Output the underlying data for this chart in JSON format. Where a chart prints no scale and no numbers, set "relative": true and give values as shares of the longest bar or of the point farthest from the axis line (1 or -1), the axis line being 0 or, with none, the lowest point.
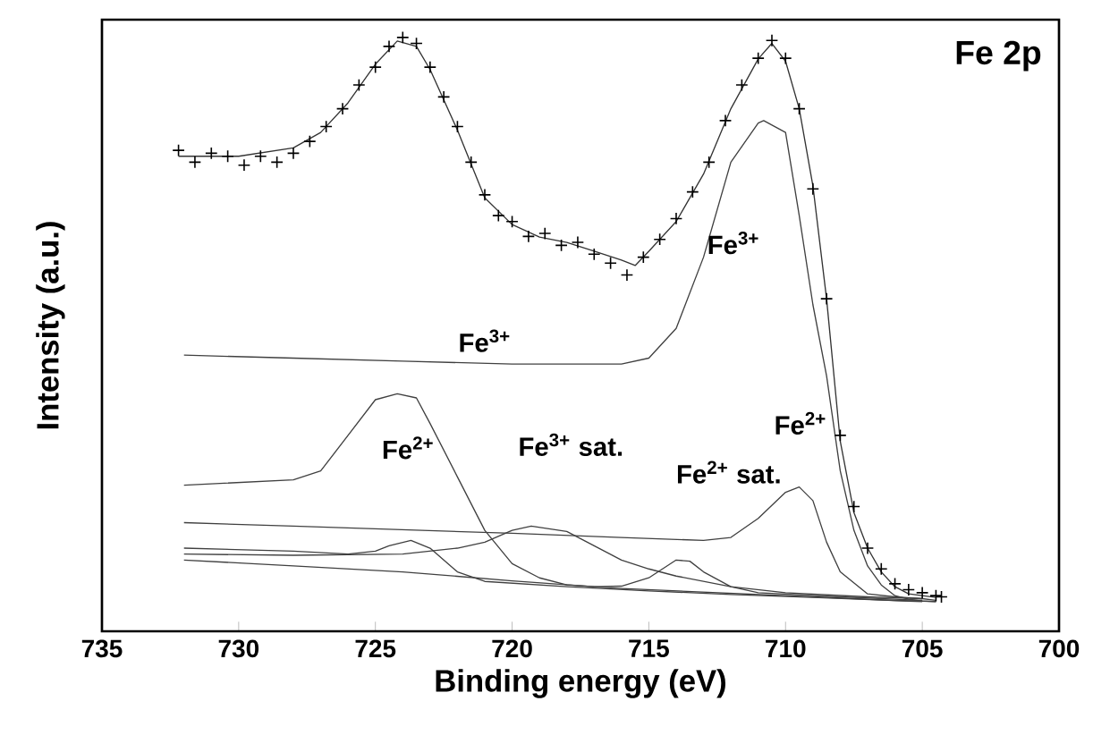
{
  "chart_data": {
    "type": "line",
    "xlabel": "Binding energy (eV)",
    "ylabel": "Intensity (a.u.)",
    "relative": true,
    "xlim": [
      735,
      700
    ],
    "xticks": [
      735,
      730,
      725,
      720,
      715,
      710,
      705,
      700
    ],
    "grid": false,
    "series": [
      {
        "color": "#333333",
        "x": [
          732.2,
          730,
          728,
          727,
          726,
          725,
          724.2,
          723.5,
          723,
          722,
          721,
          720,
          719,
          718,
          717,
          716,
          715.5,
          715,
          714,
          713,
          712,
          711,
          710.5,
          710,
          709.5,
          709,
          708.5,
          708,
          707.5,
          707,
          706.5,
          706,
          705.5,
          705,
          704.5
        ],
        "values": [
          0.8,
          0.8,
          0.814,
          0.84,
          0.89,
          0.955,
          0.994,
          0.985,
          0.946,
          0.844,
          0.73,
          0.685,
          0.664,
          0.655,
          0.64,
          0.625,
          0.616,
          0.64,
          0.69,
          0.77,
          0.88,
          0.964,
          0.99,
          0.96,
          0.88,
          0.75,
          0.56,
          0.32,
          0.2,
          0.14,
          0.1,
          0.075,
          0.063,
          0.06,
          0.057
        ]
      },
      {
        "color": "#404040",
        "x": [
          732,
          728,
          724,
          720,
          716,
          715,
          714,
          713,
          712,
          711,
          710.8,
          710,
          709.5,
          709,
          708.5,
          708,
          707.5,
          707,
          706.5,
          706,
          705.5,
          705,
          704.5
        ],
        "values": [
          0.465,
          0.46,
          0.455,
          0.45,
          0.45,
          0.46,
          0.51,
          0.63,
          0.79,
          0.856,
          0.86,
          0.84,
          0.7,
          0.55,
          0.43,
          0.27,
          0.17,
          0.11,
          0.078,
          0.06,
          0.054,
          0.051,
          0.05
        ]
      },
      {
        "color": "#404040",
        "x": [
          732,
          728,
          727,
          726,
          725,
          724.2,
          723.5,
          723,
          722,
          721,
          720,
          719,
          718,
          716,
          714,
          712,
          710,
          708,
          706,
          704.5
        ],
        "values": [
          0.246,
          0.255,
          0.27,
          0.33,
          0.39,
          0.4,
          0.393,
          0.35,
          0.26,
          0.17,
          0.114,
          0.09,
          0.078,
          0.072,
          0.068,
          0.064,
          0.06,
          0.056,
          0.052,
          0.05
        ]
      },
      {
        "color": "#404040",
        "x": [
          732,
          728,
          724,
          720,
          716,
          713,
          712,
          711,
          710,
          709.5,
          709,
          708.5,
          708,
          707,
          706,
          705,
          704.5
        ],
        "values": [
          0.183,
          0.177,
          0.171,
          0.165,
          0.158,
          0.153,
          0.158,
          0.19,
          0.234,
          0.243,
          0.22,
          0.15,
          0.1,
          0.063,
          0.058,
          0.055,
          0.052
        ]
      },
      {
        "color": "#404040",
        "x": [
          732,
          728,
          726,
          725,
          724.5,
          723.7,
          723,
          722,
          721,
          718,
          715,
          712,
          709,
          705
        ],
        "values": [
          0.14,
          0.135,
          0.13,
          0.135,
          0.144,
          0.153,
          0.14,
          0.1,
          0.084,
          0.075,
          0.068,
          0.062,
          0.057,
          0.05
        ]
      },
      {
        "color": "#404040",
        "x": [
          732,
          728,
          724,
          722,
          721,
          720,
          719.3,
          718,
          717,
          716,
          715,
          714,
          712,
          710,
          707,
          705
        ],
        "values": [
          0.13,
          0.128,
          0.13,
          0.14,
          0.15,
          0.17,
          0.177,
          0.168,
          0.144,
          0.12,
          0.105,
          0.093,
          0.075,
          0.065,
          0.058,
          0.055
        ]
      },
      {
        "color": "#404040",
        "x": [
          732,
          728,
          724,
          720,
          717,
          716,
          715,
          714,
          713.5,
          713,
          712,
          711,
          708,
          705
        ],
        "values": [
          0.12,
          0.11,
          0.1,
          0.085,
          0.075,
          0.076,
          0.09,
          0.12,
          0.118,
          0.1,
          0.075,
          0.065,
          0.058,
          0.052
        ]
      },
      {
        "type": "scatter",
        "marker": "cross",
        "color": "#000000",
        "x": [
          732.2,
          731.6,
          731,
          730.4,
          729.8,
          729.2,
          728.6,
          728,
          727.4,
          726.8,
          726.2,
          725.6,
          725,
          724.5,
          724,
          723.5,
          723,
          722.5,
          722,
          721.5,
          721,
          720.5,
          720,
          719.4,
          718.8,
          718.2,
          717.6,
          717,
          716.4,
          715.8,
          715.2,
          714.6,
          714,
          713.4,
          712.8,
          712.2,
          711.6,
          711,
          710.5,
          710,
          709.5,
          709,
          708.5,
          708,
          707.5,
          707,
          706.5,
          706,
          705.5,
          705,
          704.5,
          704.3
        ],
        "values": [
          0.81,
          0.79,
          0.805,
          0.8,
          0.785,
          0.8,
          0.79,
          0.805,
          0.825,
          0.85,
          0.88,
          0.92,
          0.95,
          0.985,
          1.0,
          0.99,
          0.95,
          0.9,
          0.85,
          0.79,
          0.735,
          0.7,
          0.69,
          0.665,
          0.67,
          0.65,
          0.655,
          0.635,
          0.62,
          0.6,
          0.63,
          0.66,
          0.695,
          0.74,
          0.79,
          0.86,
          0.92,
          0.965,
          0.995,
          0.965,
          0.88,
          0.745,
          0.56,
          0.33,
          0.21,
          0.14,
          0.105,
          0.08,
          0.07,
          0.065,
          0.06,
          0.058
        ]
      }
    ],
    "annotations": [
      "Fe 2p",
      "Fe$^{3+}$",
      "Fe$^{3+}$",
      "Fe$^{2+}$",
      "Fe$^{3+}$ sat.",
      "Fe$^{2+}$ sat.",
      "Fe$^{2+}$"
    ]
  }
}
